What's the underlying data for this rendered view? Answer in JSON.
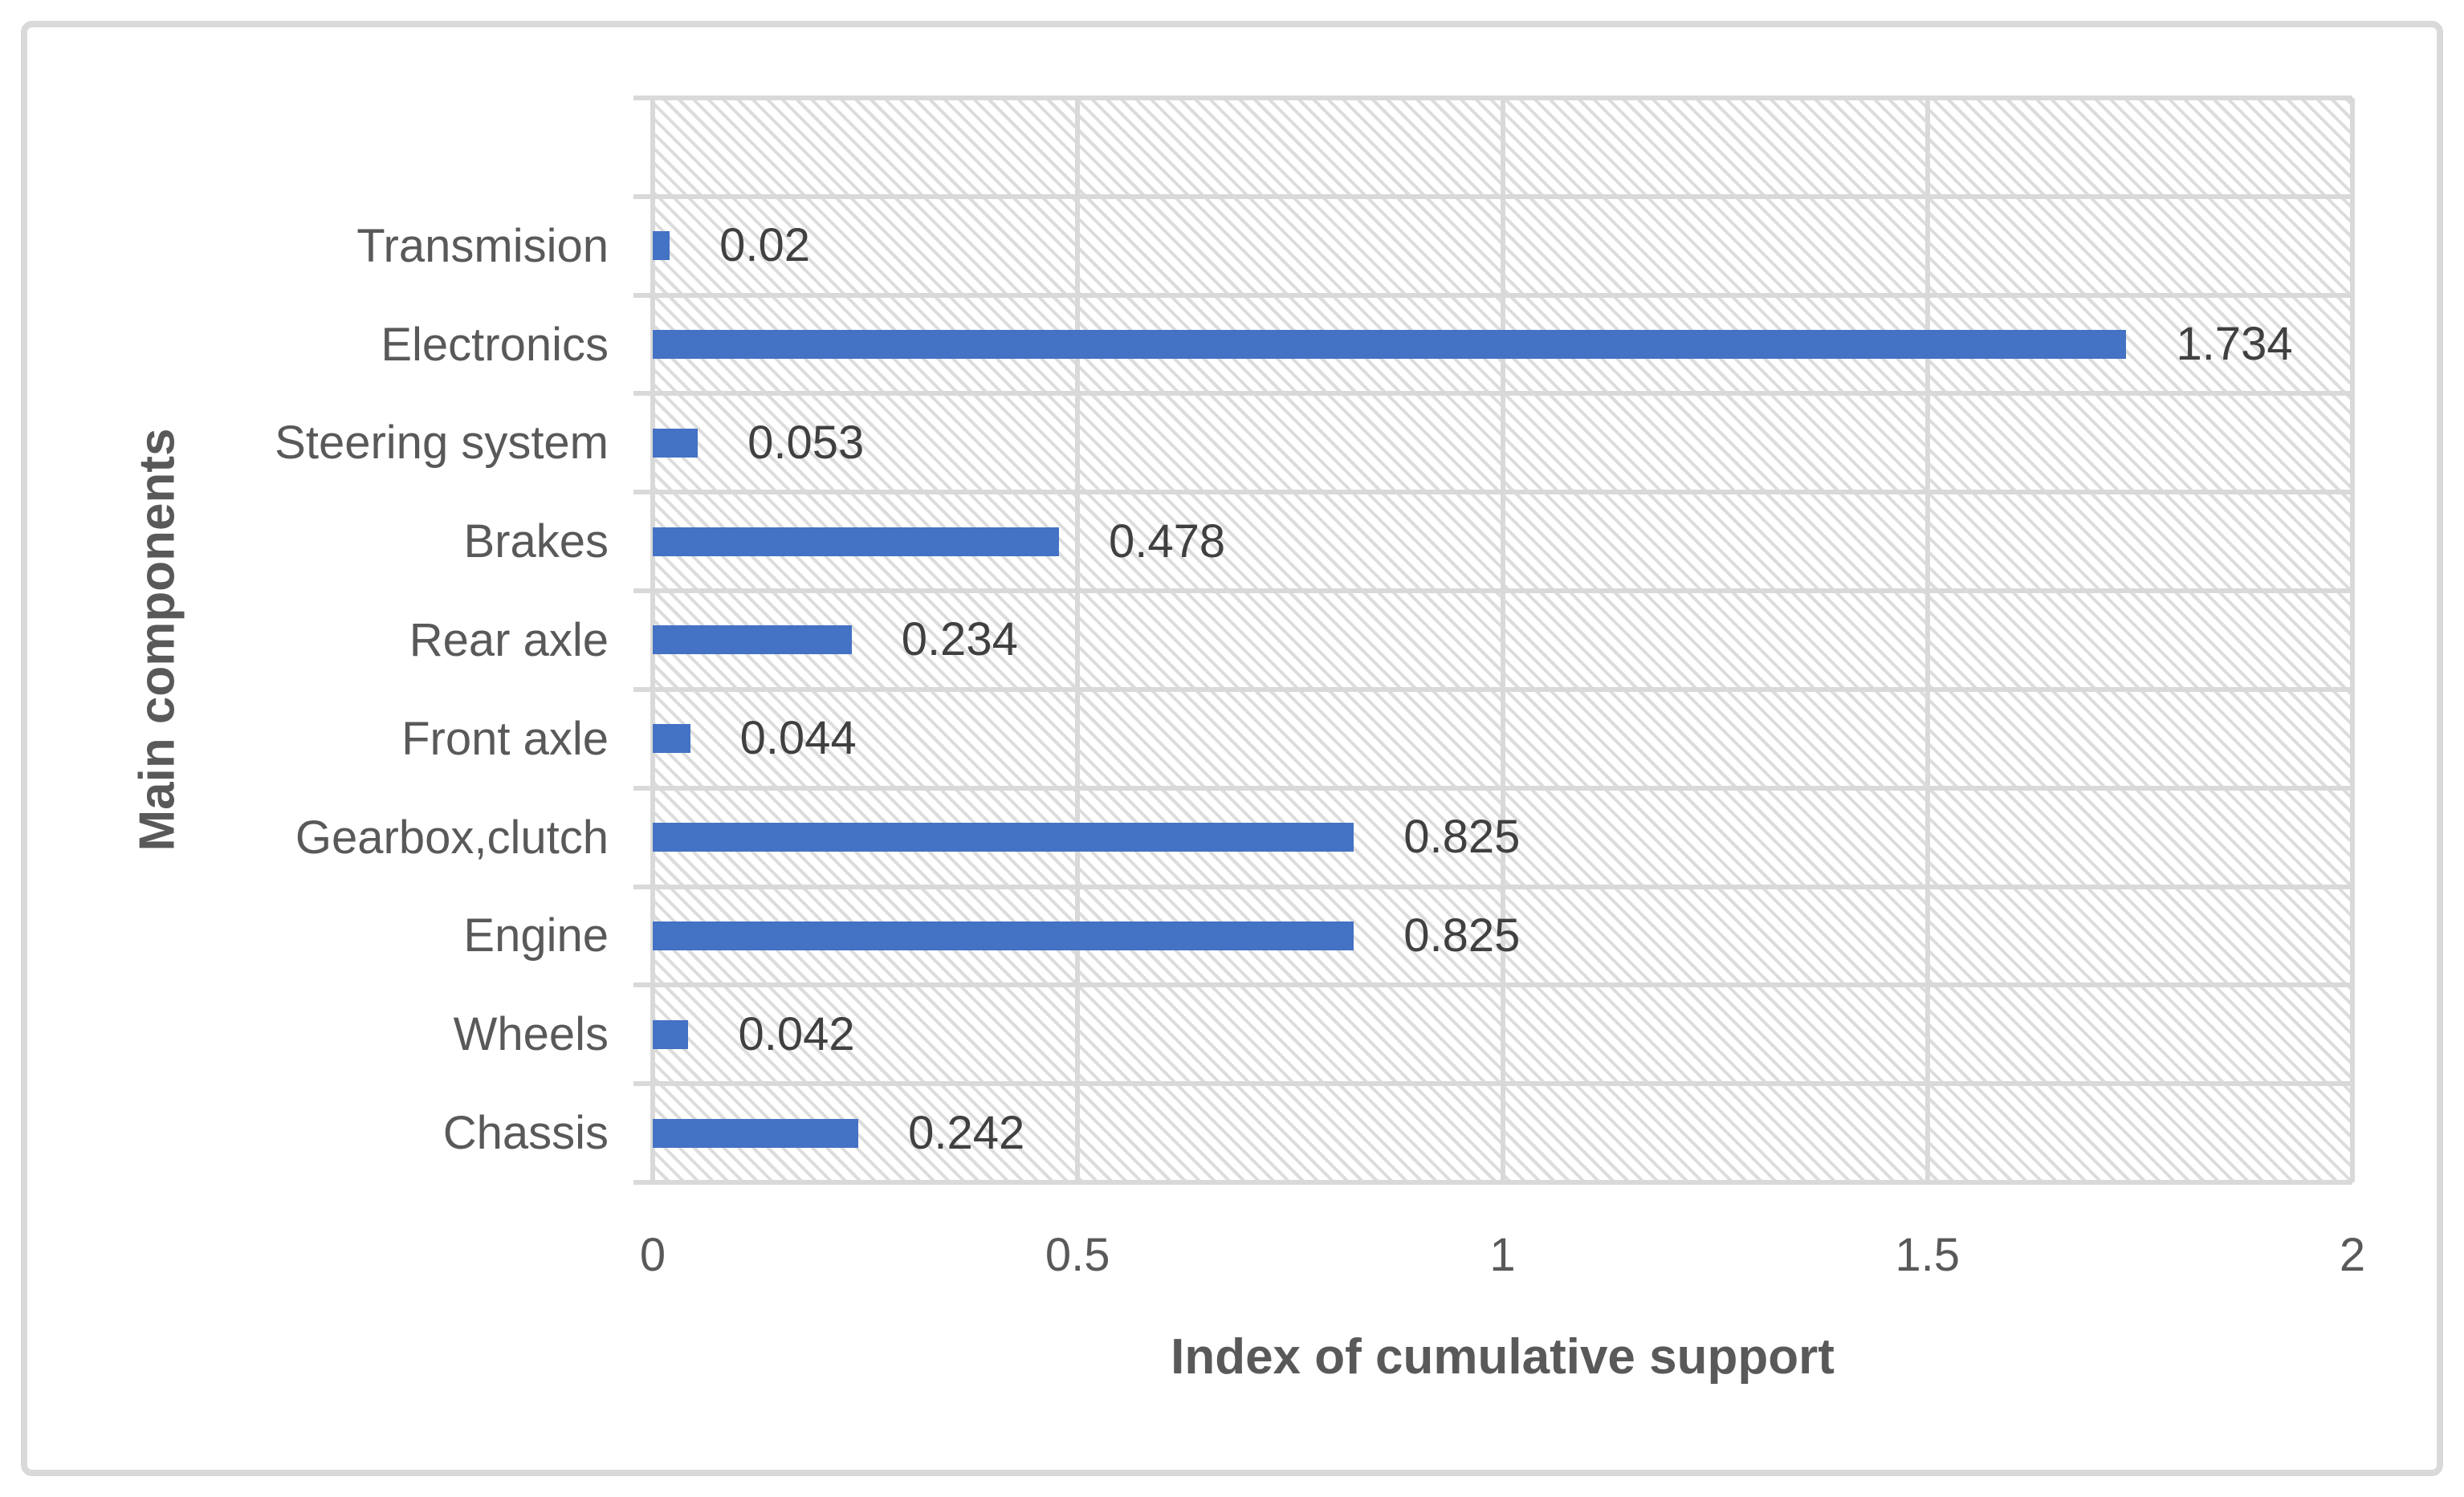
{
  "chart_data": {
    "type": "bar",
    "orientation": "horizontal",
    "title": "",
    "xlabel": "Index of cumulative support",
    "ylabel": "Main components",
    "categories": [
      "Transmision",
      "Electronics",
      "Steering system",
      "Brakes",
      "Rear axle",
      "Front axle",
      "Gearbox,clutch",
      "Engine",
      "Wheels",
      "Chassis"
    ],
    "values": [
      0.02,
      1.734,
      0.053,
      0.478,
      0.234,
      0.044,
      0.825,
      0.825,
      0.042,
      0.242
    ],
    "value_labels": [
      "0.02",
      "1.734",
      "0.053",
      "0.478",
      "0.234",
      "0.044",
      "0.825",
      "0.825",
      "0.042",
      "0.242"
    ],
    "xlim": [
      0,
      2
    ],
    "xticks": [
      0,
      0.5,
      1,
      1.5,
      2
    ],
    "xtick_labels": [
      "0",
      "0.5",
      "1",
      "1.5",
      "2"
    ],
    "grid": true,
    "legend": false,
    "layout_hints": {
      "leading_empty_bands": 1,
      "plot_background": "light-diagonal-hatch",
      "value_labels_position": "outside-end"
    },
    "colors": {
      "bar": "#4472C4",
      "gridline": "#D9D9D9",
      "axis_text": "#595959",
      "value_label": "#404040",
      "hatch": "#DCDCDC",
      "frame_border": "#D9D9D9",
      "background": "#FFFFFF"
    }
  }
}
